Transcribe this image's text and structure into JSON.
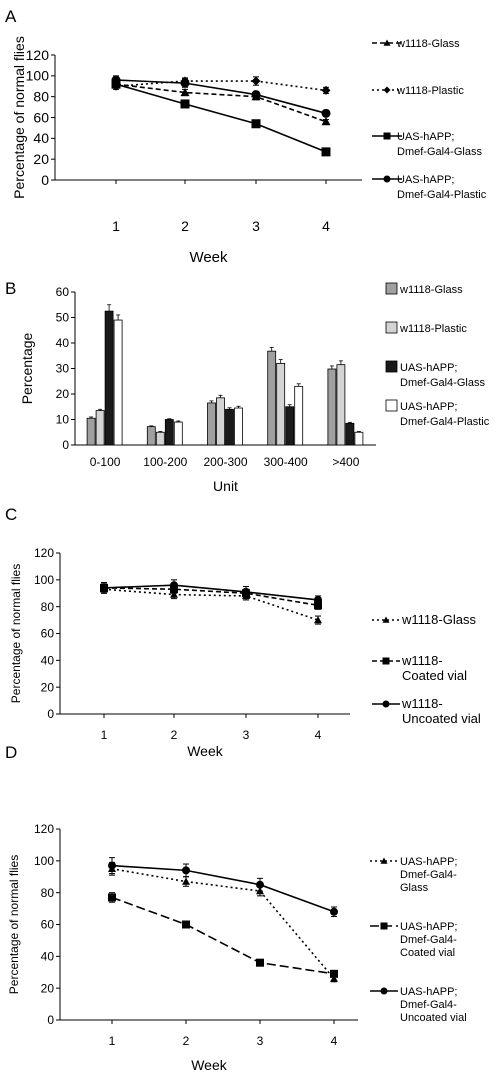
{
  "chart_data": [
    {
      "panel": "A",
      "type": "line",
      "xlabel": "Week",
      "ylabel": "Percentage of normal flies",
      "x": [
        1,
        2,
        3,
        4
      ],
      "xticks": [
        "1",
        "2",
        "3",
        "4"
      ],
      "ylim": [
        0,
        120
      ],
      "yticks": [
        "0",
        "20",
        "40",
        "60",
        "80",
        "100",
        "120"
      ],
      "legend": "right",
      "series": [
        {
          "name": "w1118-Glass",
          "values": [
            92,
            84,
            80,
            56
          ],
          "errors": [
            3,
            3,
            3,
            2
          ],
          "marker": "triangle",
          "dash": "dash"
        },
        {
          "name": "w1118-Plastic",
          "values": [
            90,
            95,
            95,
            86
          ],
          "errors": [
            3,
            3,
            4,
            3
          ],
          "marker": "diamond",
          "dash": "dot"
        },
        {
          "name": "UAS-hAPP;\nDmef-Gal4-Glass",
          "values": [
            92,
            73,
            54,
            27
          ],
          "errors": [
            3,
            2,
            2,
            2
          ],
          "marker": "square",
          "dash": "solid"
        },
        {
          "name": "UAS-hAPP;\nDmef-Gal4-Plastic",
          "values": [
            96,
            93,
            82,
            64
          ],
          "errors": [
            4,
            4,
            3,
            3
          ],
          "marker": "circle",
          "dash": "solid"
        }
      ]
    },
    {
      "panel": "B",
      "type": "bar",
      "xlabel": "Unit",
      "ylabel": "Percentage",
      "categories": [
        "0-100",
        "100-200",
        "200-300",
        "300-400",
        ">400"
      ],
      "ylim": [
        0,
        60
      ],
      "yticks": [
        "0",
        "10",
        "20",
        "30",
        "40",
        "50",
        "60"
      ],
      "legend": "right",
      "series": [
        {
          "name": "w1118-Glass",
          "values": [
            10.5,
            7.2,
            16.5,
            36.8,
            29.8
          ],
          "errors": [
            0.5,
            0.3,
            0.8,
            1.5,
            1.2
          ],
          "color": "#a0a0a0"
        },
        {
          "name": "w1118-Plastic",
          "values": [
            13.5,
            5.0,
            18.5,
            32.0,
            31.5
          ],
          "errors": [
            0.5,
            0.3,
            1.0,
            1.5,
            1.5
          ],
          "color": "#d4d4d4"
        },
        {
          "name": "UAS-hAPP;\nDmef-Gal4-Glass",
          "values": [
            52.5,
            10.0,
            14.0,
            15.0,
            8.5
          ],
          "errors": [
            2.5,
            0.3,
            0.6,
            0.8,
            0.4
          ],
          "color": "#1a1a1a"
        },
        {
          "name": "UAS-hAPP;\nDmef-Gal4-Plastic",
          "values": [
            49.0,
            9.0,
            14.5,
            23.0,
            5.0
          ],
          "errors": [
            2.0,
            0.4,
            0.7,
            1.0,
            0.3
          ],
          "color": "#ffffff"
        }
      ]
    },
    {
      "panel": "C",
      "type": "line",
      "xlabel": "Week",
      "ylabel": "Percentage of normal flies",
      "x": [
        1,
        2,
        3,
        4
      ],
      "xticks": [
        "1",
        "2",
        "3",
        "4"
      ],
      "ylim": [
        0,
        120
      ],
      "yticks": [
        "0",
        "20",
        "40",
        "60",
        "80",
        "100",
        "120"
      ],
      "legend": "right",
      "series": [
        {
          "name": "w1118-Glass",
          "values": [
            93,
            89,
            88,
            70
          ],
          "errors": [
            3,
            3,
            3,
            3
          ],
          "marker": "triangle",
          "dash": "dot"
        },
        {
          "name": "w1118-\nCoated vial",
          "values": [
            94,
            93,
            90,
            81
          ],
          "errors": [
            3,
            3,
            3,
            3
          ],
          "marker": "square",
          "dash": "dash"
        },
        {
          "name": "w1118-\nUncoated vial",
          "values": [
            94,
            96,
            91,
            85
          ],
          "errors": [
            4,
            4,
            4,
            3
          ],
          "marker": "circle",
          "dash": "solid"
        }
      ]
    },
    {
      "panel": "D",
      "type": "line",
      "xlabel": "Week",
      "ylabel": "Percentage of normal flies",
      "x": [
        1,
        2,
        3,
        4
      ],
      "xticks": [
        "1",
        "2",
        "3",
        "4"
      ],
      "ylim": [
        0,
        120
      ],
      "yticks": [
        "0",
        "20",
        "40",
        "60",
        "80",
        "100",
        "120"
      ],
      "legend": "right",
      "series": [
        {
          "name": "UAS-hAPP;\nDmef-Gal4-\nGlass",
          "values": [
            95,
            87,
            81,
            26
          ],
          "errors": [
            4,
            3,
            3,
            2
          ],
          "marker": "triangle",
          "dash": "dot"
        },
        {
          "name": "UAS-hAPP;\nDmef-Gal4-\nCoated vial",
          "values": [
            77,
            60,
            36,
            29
          ],
          "errors": [
            3,
            2,
            2,
            2
          ],
          "marker": "square",
          "dash": "longdash"
        },
        {
          "name": "UAS-hAPP;\nDmef-Gal4-\nUncoated vial",
          "values": [
            97,
            94,
            85,
            68
          ],
          "errors": [
            5,
            4,
            4,
            3
          ],
          "marker": "circle",
          "dash": "solid"
        }
      ]
    }
  ]
}
